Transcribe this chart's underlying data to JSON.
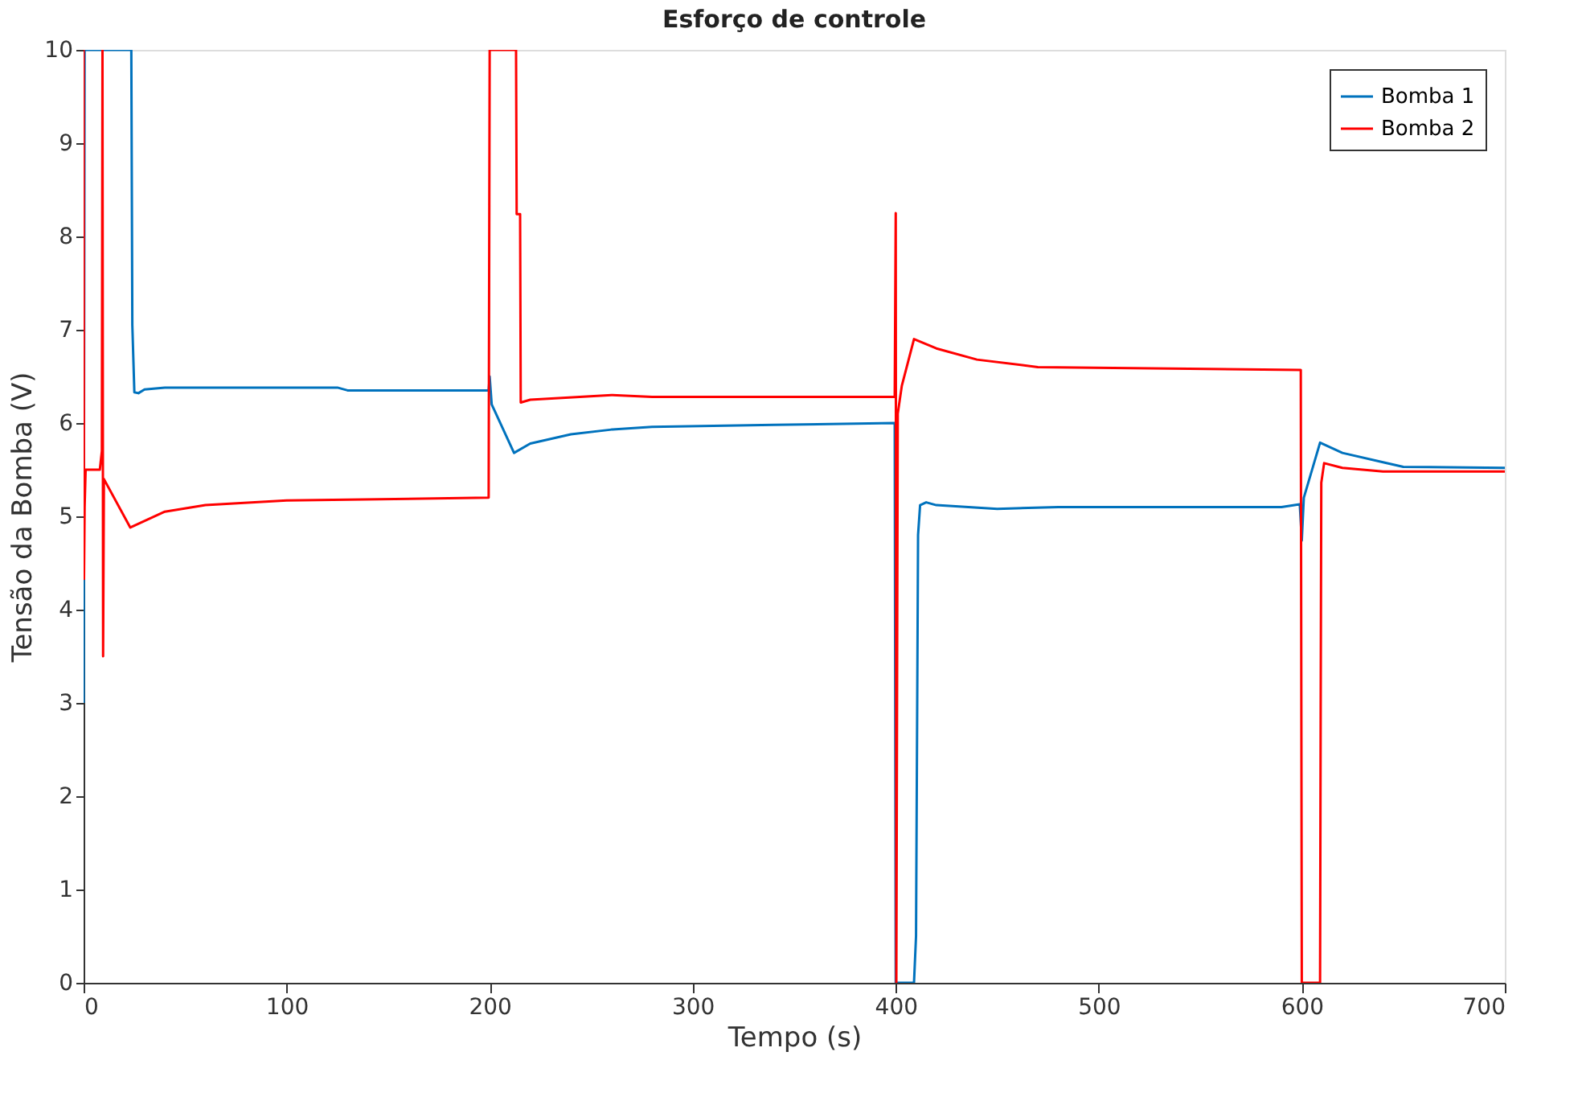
{
  "chart_data": {
    "type": "line",
    "title": "Esforço de controle",
    "xlabel": "Tempo (s)",
    "ylabel": "Tensão da Bomba (V)",
    "xlim": [
      0,
      700
    ],
    "ylim": [
      0,
      10
    ],
    "xticks": [
      0,
      100,
      200,
      300,
      400,
      500,
      600,
      700
    ],
    "yticks": [
      0,
      1,
      2,
      3,
      4,
      5,
      6,
      7,
      8,
      9,
      10
    ],
    "grid": false,
    "legend": "top right",
    "marker": "none",
    "line_style": "solid",
    "series": [
      {
        "name": "Bomba 1",
        "color": "#0072bd",
        "x": [
          0,
          0.5,
          23.5,
          24,
          25,
          27,
          30,
          40,
          125,
          130,
          199.5,
          200,
          201,
          212,
          220,
          240,
          260,
          280,
          340,
          399.5,
          400,
          409,
          410,
          411,
          412,
          415,
          420,
          450,
          480,
          590,
          599,
          600,
          601,
          609,
          620,
          640,
          650,
          700
        ],
        "values": [
          3.0,
          10,
          10,
          7.05,
          6.33,
          6.32,
          6.36,
          6.38,
          6.38,
          6.35,
          6.35,
          6.5,
          6.2,
          5.68,
          5.78,
          5.88,
          5.93,
          5.96,
          5.98,
          6.0,
          0,
          0,
          0.5,
          4.8,
          5.12,
          5.15,
          5.12,
          5.08,
          5.1,
          5.1,
          5.13,
          4.74,
          5.2,
          5.79,
          5.68,
          5.58,
          5.53,
          5.52
        ]
      },
      {
        "name": "Bomba 2",
        "color": "#ff0000",
        "x": [
          0,
          0.2,
          0.5,
          1,
          1.5,
          8,
          9,
          9.3,
          9.6,
          10,
          23,
          40,
          60,
          100,
          199.5,
          200,
          213,
          213.3,
          215,
          215.3,
          220,
          260,
          280,
          399.5,
          400,
          400.3,
          401,
          403,
          409,
          420,
          440,
          470,
          599.5,
          600,
          609,
          609.3,
          609.6,
          611,
          620,
          640,
          700
        ],
        "values": [
          10,
          4.33,
          5.1,
          5.5,
          5.5,
          5.5,
          5.7,
          10,
          3.5,
          5.4,
          4.88,
          5.05,
          5.12,
          5.17,
          5.2,
          10,
          10,
          8.24,
          8.24,
          6.22,
          6.25,
          6.3,
          6.28,
          6.28,
          8.25,
          0,
          6.1,
          6.4,
          6.9,
          6.8,
          6.68,
          6.6,
          6.57,
          0,
          0,
          2.93,
          5.36,
          5.57,
          5.52,
          5.48,
          5.48
        ]
      }
    ]
  }
}
